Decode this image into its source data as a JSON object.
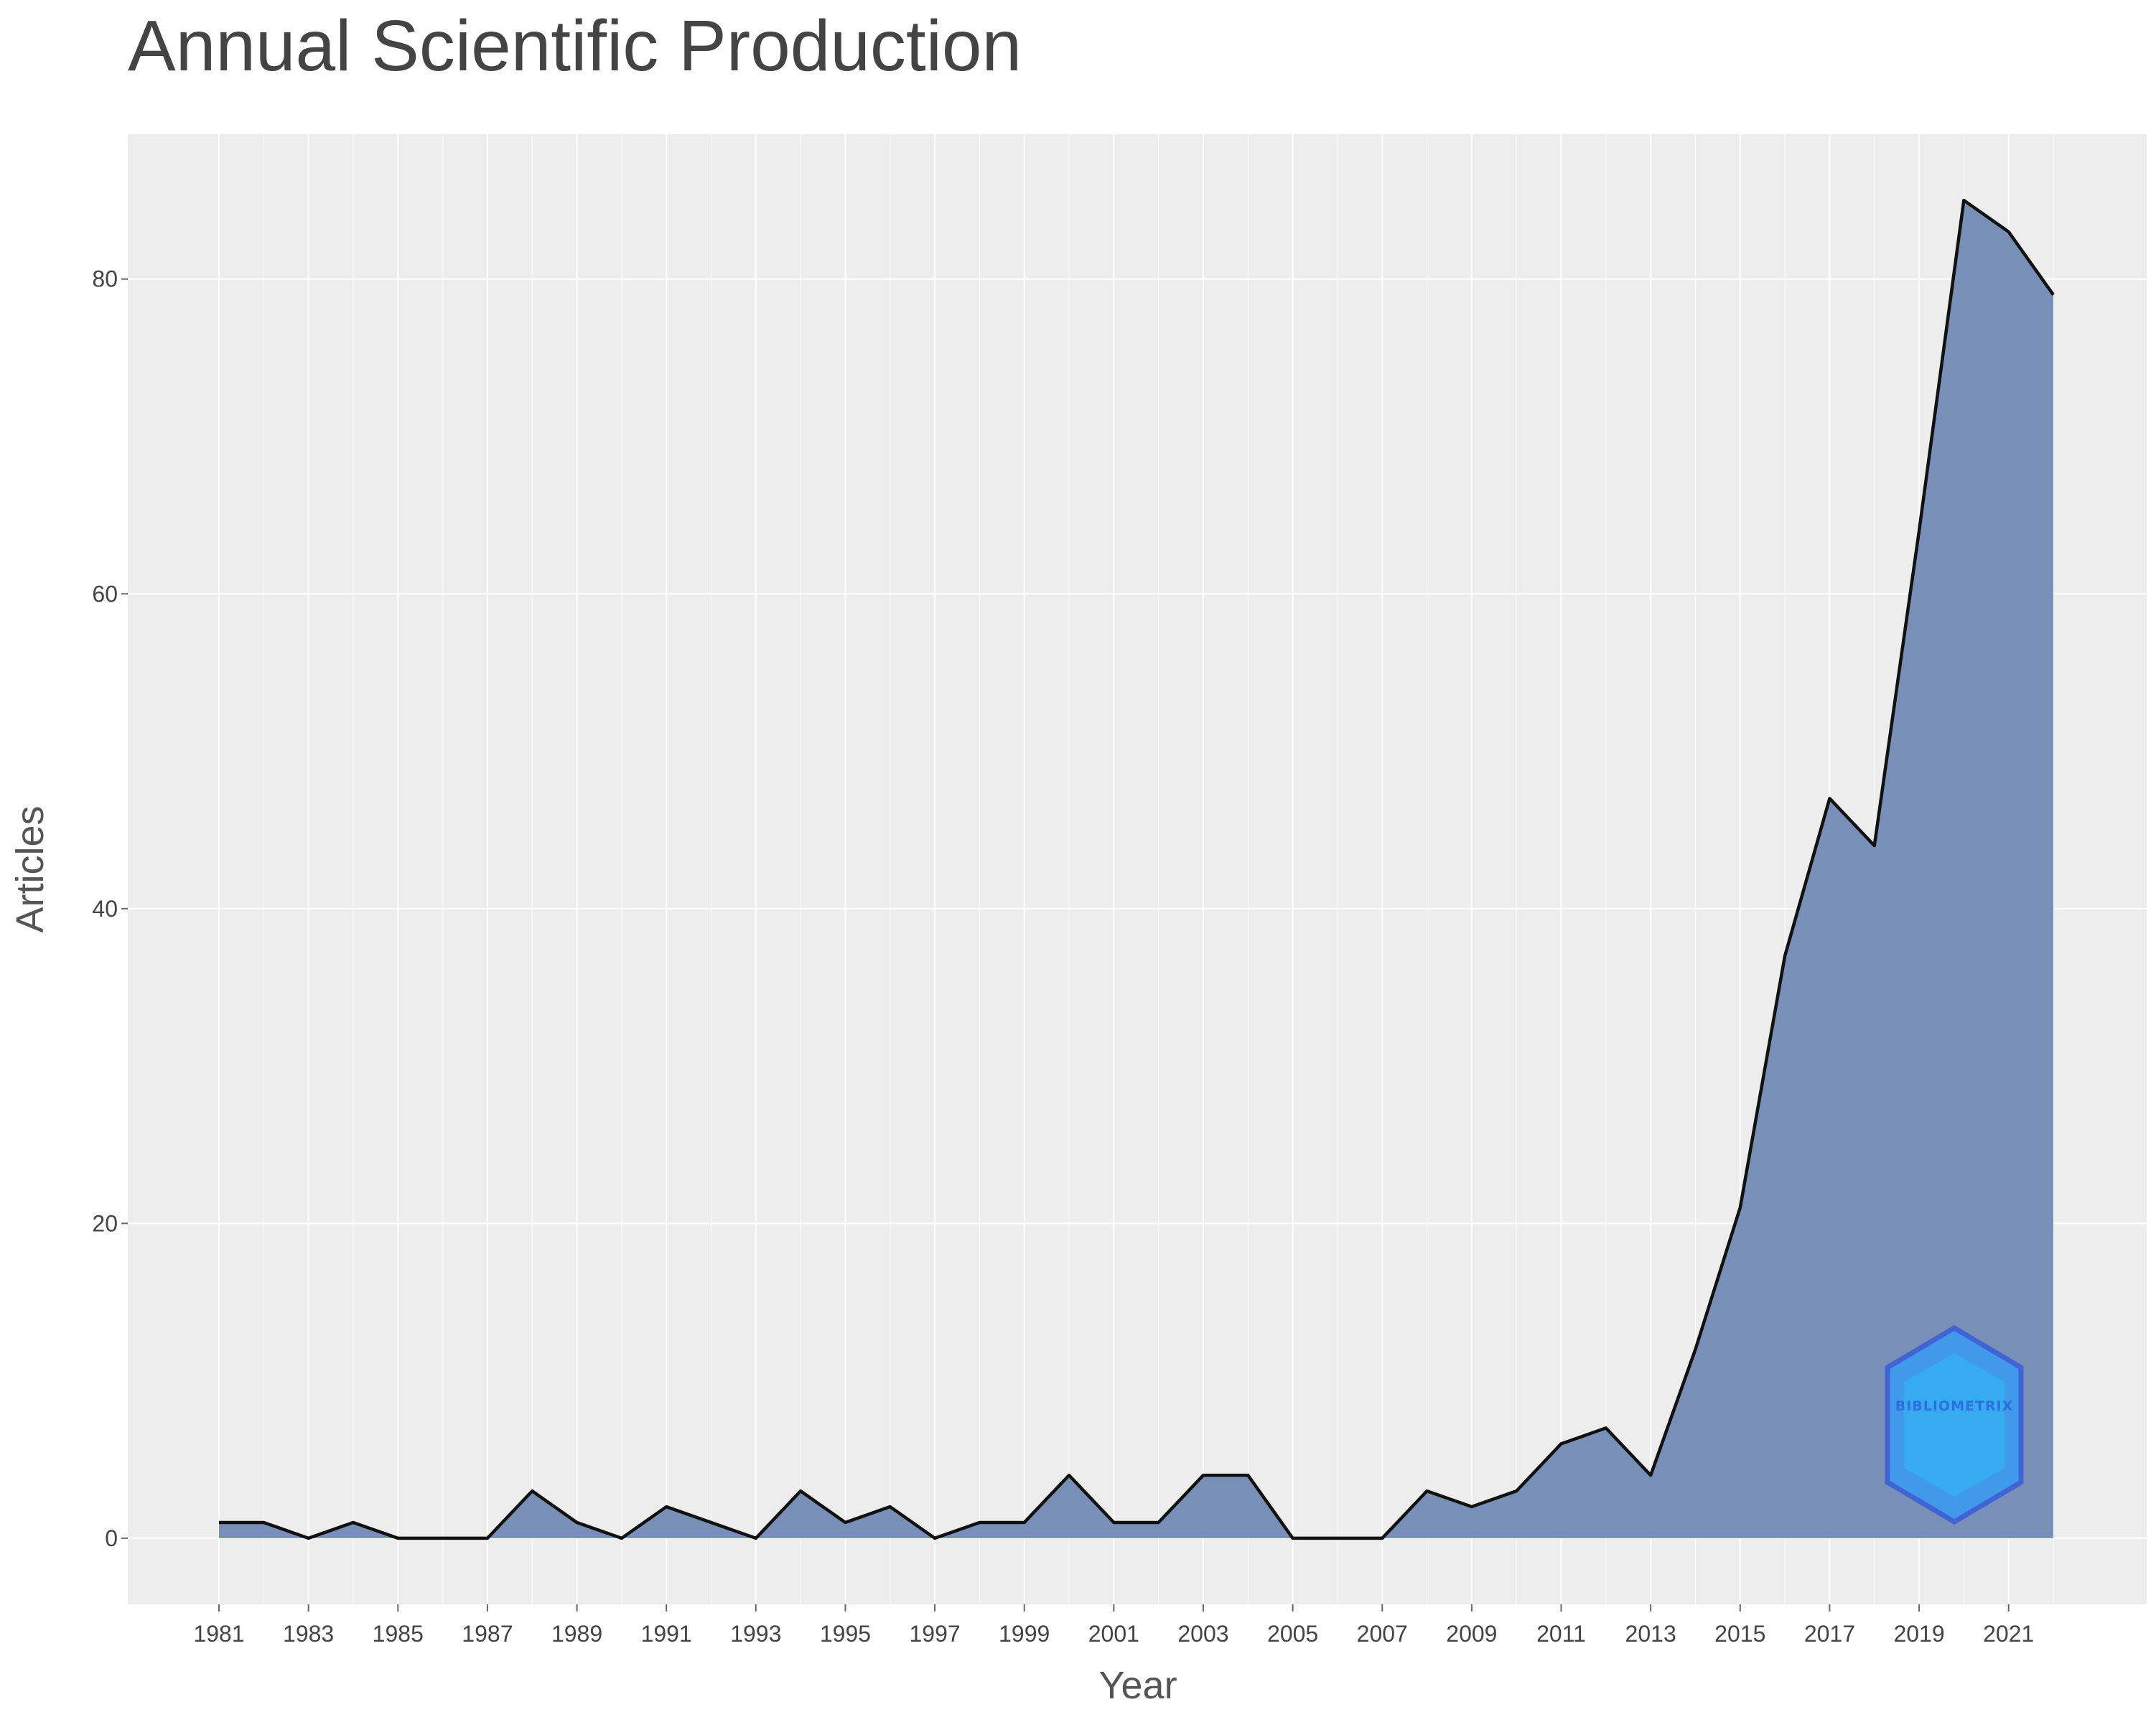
{
  "chart_data": {
    "type": "area",
    "title": "Annual Scientific Production",
    "xlabel": "Year",
    "ylabel": "Articles",
    "x": [
      1981,
      1982,
      1983,
      1984,
      1985,
      1986,
      1987,
      1988,
      1989,
      1990,
      1991,
      1992,
      1993,
      1994,
      1995,
      1996,
      1997,
      1998,
      1999,
      2000,
      2001,
      2002,
      2003,
      2004,
      2005,
      2006,
      2007,
      2008,
      2009,
      2010,
      2011,
      2012,
      2013,
      2014,
      2015,
      2016,
      2017,
      2018,
      2019,
      2020,
      2021,
      2022
    ],
    "values": [
      1,
      1,
      0,
      1,
      0,
      0,
      0,
      3,
      1,
      0,
      2,
      1,
      0,
      3,
      1,
      2,
      0,
      1,
      1,
      4,
      1,
      1,
      4,
      4,
      0,
      0,
      0,
      3,
      2,
      3,
      6,
      7,
      4,
      12,
      21,
      37,
      47,
      44,
      64,
      85,
      83,
      79
    ],
    "xlim": [
      1981,
      2022
    ],
    "ylim": [
      -4.2,
      89.2
    ],
    "x_ticks": [
      "1981",
      "1983",
      "1985",
      "1987",
      "1989",
      "1991",
      "1993",
      "1995",
      "1997",
      "1999",
      "2001",
      "2003",
      "2005",
      "2007",
      "2009",
      "2011",
      "2013",
      "2015",
      "2017",
      "2019",
      "2021"
    ],
    "y_ticks": [
      "0",
      "20",
      "40",
      "60",
      "80"
    ],
    "grid": true,
    "colors": {
      "plot_background": "#ededed",
      "grid": "#ffffff",
      "area_fill": "#7890b8",
      "line": "#111111"
    },
    "watermark": "BIBLIOMETRIX"
  }
}
